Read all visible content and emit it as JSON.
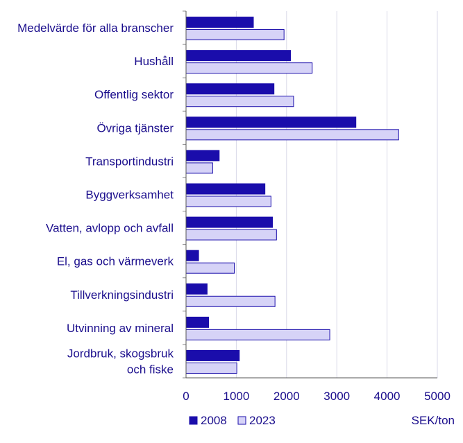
{
  "chart_data": {
    "type": "bar",
    "orientation": "horizontal",
    "categories": [
      [
        "Medelvärde för alla branscher"
      ],
      [
        "Hushåll"
      ],
      [
        "Offentlig sektor"
      ],
      [
        "Övriga tjänster"
      ],
      [
        "Transportindustri"
      ],
      [
        "Byggverksamhet"
      ],
      [
        "Vatten, avlopp och avfall"
      ],
      [
        "El, gas och värmeverk"
      ],
      [
        "Tillverkningsindustri"
      ],
      [
        "Utvinning av mineral"
      ],
      [
        "Jordbruk, skogsbruk",
        "och fiske"
      ]
    ],
    "series": [
      {
        "name": "2008",
        "color": "#1a0dab",
        "values": [
          1340,
          2080,
          1750,
          3380,
          660,
          1570,
          1720,
          250,
          420,
          450,
          1060
        ]
      },
      {
        "name": "2023",
        "color": "#d6d3f7",
        "values": [
          1950,
          2510,
          2140,
          4230,
          530,
          1690,
          1800,
          960,
          1770,
          2860,
          1010
        ]
      }
    ],
    "xlim": [
      0,
      5000
    ],
    "xticks": [
      0,
      1000,
      2000,
      3000,
      4000,
      5000
    ],
    "xunit": "SEK/ton",
    "grid": "vertical",
    "legend_position": "bottom-left",
    "colors": {
      "dark": "#1a0dab",
      "light": "#d6d3f7",
      "outline": "#1a0dab",
      "grid": "#d9d9e8",
      "text": "#1a0d8c"
    }
  }
}
